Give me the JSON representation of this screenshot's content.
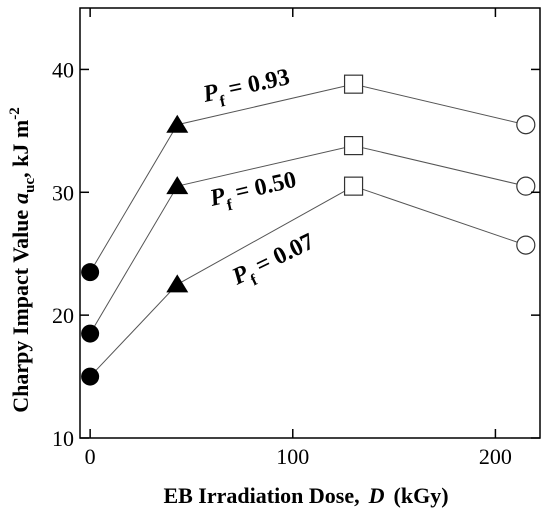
{
  "chart_data": {
    "type": "line",
    "xlabel": "EB Irradiation Dose,",
    "xlabel_symbol": "D",
    "xlabel_unit": "(kGy)",
    "ylabel": "Charpy Impact Value",
    "ylabel_symbol": "a",
    "ylabel_symbol_sub": "uc",
    "ylabel_unit": ", kJ m",
    "ylabel_unit_sup": "-2",
    "xlim": [
      -5,
      222
    ],
    "ylim": [
      10,
      45
    ],
    "x_ticks": [
      0,
      100,
      200
    ],
    "x_tick_labels": [
      "0",
      "100",
      "200"
    ],
    "y_ticks": [
      10,
      20,
      30,
      40
    ],
    "y_tick_labels": [
      "10",
      "20",
      "30",
      "40"
    ],
    "grid": false,
    "x": [
      0,
      43,
      130,
      215
    ],
    "markers": [
      "filled-circle",
      "filled-triangle",
      "open-square",
      "open-circle"
    ],
    "series": [
      {
        "label_symbol": "P",
        "label_sub": "f",
        "label_value": "= 0.93",
        "values": [
          23.5,
          35.5,
          38.8,
          35.5
        ]
      },
      {
        "label_symbol": "P",
        "label_sub": "f",
        "label_value": "= 0.50",
        "values": [
          18.5,
          30.5,
          33.8,
          30.5
        ]
      },
      {
        "label_symbol": "P",
        "label_sub": "f",
        "label_value": "= 0.07",
        "values": [
          15.0,
          22.5,
          30.5,
          25.7
        ]
      }
    ]
  }
}
